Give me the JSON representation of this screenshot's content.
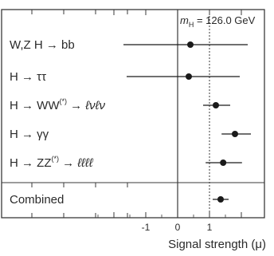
{
  "chart_data": {
    "type": "scatter",
    "title": "",
    "xlabel": "Signal strength (μ)",
    "ylabel": "",
    "xlim": [
      -2.55,
      2.45
    ],
    "x_ticks": [
      -2,
      -1,
      0,
      1,
      2
    ],
    "x_tick_labels": [
      {
        "value": -1,
        "text": "-1"
      },
      {
        "value": 0,
        "text": "0"
      },
      {
        "value": 1,
        "text": "1"
      }
    ],
    "reference_lines": [
      {
        "x": 0,
        "style": "solid"
      },
      {
        "x": 1,
        "style": "dotted"
      }
    ],
    "annotation": {
      "italic": "m",
      "subscript": "H",
      "rest": " = 126.0 GeV"
    },
    "rows": [
      {
        "id": "wzh-bb",
        "parts": [
          {
            "t": "W,Z H → bb"
          }
        ],
        "value": 0.4,
        "err_lo": -1.7,
        "err_hi": 2.2
      },
      {
        "id": "h-tautau",
        "parts": [
          {
            "t": "H → ττ"
          }
        ],
        "value": 0.35,
        "err_lo": -1.6,
        "err_hi": 1.95
      },
      {
        "id": "h-ww",
        "parts": [
          {
            "t": "H → WW"
          },
          {
            "t": "(*)",
            "sup": true
          },
          {
            "t": " → ℓνℓν",
            "i": true
          }
        ],
        "value": 1.2,
        "err_lo": 0.8,
        "err_hi": 1.65
      },
      {
        "id": "h-gg",
        "parts": [
          {
            "t": "H → γγ",
            "i": false
          }
        ],
        "value": 1.8,
        "err_lo": 1.38,
        "err_hi": 2.3
      },
      {
        "id": "h-zz",
        "parts": [
          {
            "t": "H → ZZ"
          },
          {
            "t": "(*)",
            "sup": true
          },
          {
            "t": " → ℓℓℓℓ",
            "i": true
          }
        ],
        "value": 1.43,
        "err_lo": 0.88,
        "err_hi": 2.02
      }
    ],
    "combined": {
      "id": "combined",
      "label": "Combined",
      "value": 1.35,
      "err_lo": 1.1,
      "err_hi": 1.6
    },
    "colors": {
      "marker": "#1a1a1a",
      "frame": "#3a3a3a",
      "text": "#2a2a2a"
    },
    "grid": false,
    "legend": "none"
  }
}
